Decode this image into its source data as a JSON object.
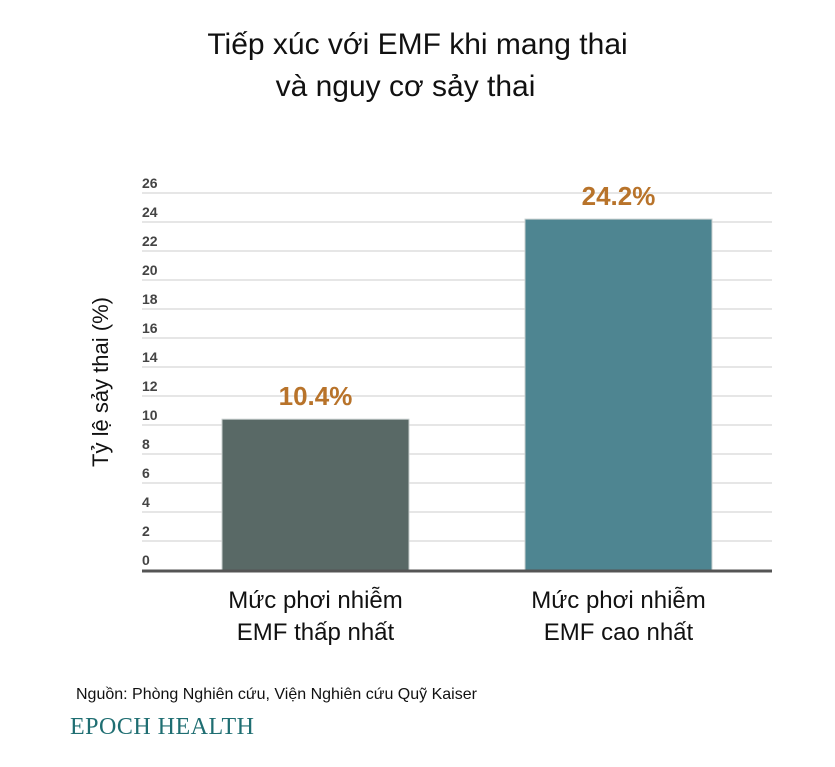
{
  "chart_data": {
    "type": "bar",
    "title_line1": "Tiếp xúc với EMF khi mang thai",
    "title_line2": "và nguy cơ sảy thai",
    "ylabel": "Tỷ lệ sảy thai (%)",
    "xlabel": "",
    "ylim": [
      0,
      26
    ],
    "yticks": [
      0,
      2,
      4,
      6,
      8,
      10,
      12,
      14,
      16,
      18,
      20,
      22,
      24,
      26
    ],
    "grid": true,
    "categories": [
      [
        "Mức phơi nhiễm",
        "EMF thấp nhất"
      ],
      [
        "Mức phơi nhiễm",
        "EMF cao nhất"
      ]
    ],
    "values": [
      10.4,
      24.2
    ],
    "data_labels": [
      "10.4%",
      "24.2%"
    ],
    "colors": {
      "bars": [
        "#596966",
        "#4e8591"
      ],
      "data_label": "#b8732a",
      "grid": "#e6e6e6",
      "axis": "#555555"
    }
  },
  "source": "Nguồn: Phòng Nghiên cứu, Viện Nghiên cứu Quỹ Kaiser",
  "logo": "EPOCH HEALTH"
}
